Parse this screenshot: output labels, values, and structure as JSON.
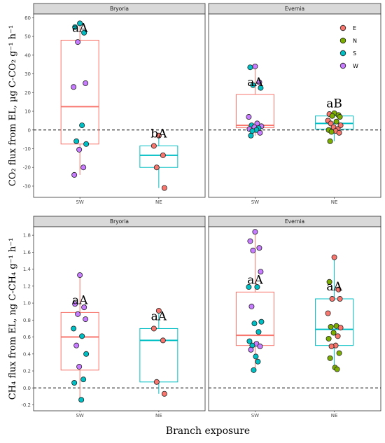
{
  "figure": {
    "x_axis_title": "Branch exposure",
    "colors": {
      "E": "#F8766D",
      "N": "#7CAE00",
      "S": "#00BFC4",
      "W": "#C77CFF",
      "SW_box": "#F8766D",
      "NE_box": "#00BFC4"
    },
    "legend": {
      "entries": [
        "E",
        "N",
        "S",
        "W"
      ],
      "placement": "top-right inside Evernia CO2 panel"
    }
  },
  "chart_data": [
    {
      "type": "box",
      "ylabel": "CO₂ flux from EL, µg C-CO₂ g⁻¹ h⁻¹",
      "ylim": [
        -36,
        62
      ],
      "yticks": [
        -30,
        -20,
        -10,
        0,
        10,
        20,
        30,
        40,
        50,
        60
      ],
      "reference_line": 0,
      "panels": [
        {
          "strip": "Bryoria",
          "groups": [
            {
              "category": "SW",
              "box": {
                "q1": -7.5,
                "median": 12.5,
                "q3": 48,
                "lower": -24,
                "upper": 57
              },
              "annotation": "aA",
              "points": [
                {
                  "y": 57,
                  "c": "S"
                },
                {
                  "y": 55,
                  "c": "S"
                },
                {
                  "y": 52,
                  "c": "S"
                },
                {
                  "y": 47,
                  "c": "W"
                },
                {
                  "y": 25,
                  "c": "W"
                },
                {
                  "y": 23,
                  "c": "W"
                },
                {
                  "y": 2.5,
                  "c": "S"
                },
                {
                  "y": -6,
                  "c": "S"
                },
                {
                  "y": -7.5,
                  "c": "S"
                },
                {
                  "y": -10.5,
                  "c": "W"
                },
                {
                  "y": -20,
                  "c": "W"
                },
                {
                  "y": -24,
                  "c": "W"
                }
              ]
            },
            {
              "category": "NE",
              "box": {
                "q1": -20,
                "median": -13.5,
                "q3": -8.5,
                "lower": -31,
                "upper": -3
              },
              "annotation": "bA",
              "points": [
                {
                  "y": -3,
                  "c": "E"
                },
                {
                  "y": -8.5,
                  "c": "E"
                },
                {
                  "y": -13.5,
                  "c": "E"
                },
                {
                  "y": -20,
                  "c": "E"
                },
                {
                  "y": -31,
                  "c": "E"
                }
              ]
            }
          ]
        },
        {
          "strip": "Evernia",
          "groups": [
            {
              "category": "SW",
              "box": {
                "q1": 1.2,
                "median": 2.5,
                "q3": 19,
                "lower": -3,
                "upper": 34
              },
              "annotation": "aA",
              "points": [
                {
                  "y": 34,
                  "c": "W"
                },
                {
                  "y": 33.5,
                  "c": "S"
                },
                {
                  "y": 25.5,
                  "c": "W"
                },
                {
                  "y": 24,
                  "c": "S"
                },
                {
                  "y": 22.5,
                  "c": "S"
                },
                {
                  "y": 7,
                  "c": "W"
                },
                {
                  "y": 3.5,
                  "c": "W"
                },
                {
                  "y": 2.5,
                  "c": "S"
                },
                {
                  "y": 2,
                  "c": "W"
                },
                {
                  "y": 1.5,
                  "c": "W"
                },
                {
                  "y": 1,
                  "c": "S"
                },
                {
                  "y": 0.5,
                  "c": "W"
                },
                {
                  "y": 0,
                  "c": "S"
                },
                {
                  "y": -0.5,
                  "c": "S"
                },
                {
                  "y": -1.5,
                  "c": "W"
                },
                {
                  "y": -3,
                  "c": "S"
                }
              ]
            },
            {
              "category": "NE",
              "box": {
                "q1": 0.5,
                "median": 3.5,
                "q3": 7.5,
                "lower": -6,
                "upper": 9
              },
              "annotation": "aB",
              "points": [
                {
                  "y": 9,
                  "c": "N"
                },
                {
                  "y": 8.5,
                  "c": "E"
                },
                {
                  "y": 8,
                  "c": "N"
                },
                {
                  "y": 7.5,
                  "c": "N"
                },
                {
                  "y": 7,
                  "c": "N"
                },
                {
                  "y": 5,
                  "c": "E"
                },
                {
                  "y": 4.5,
                  "c": "N"
                },
                {
                  "y": 3.5,
                  "c": "E"
                },
                {
                  "y": 2.5,
                  "c": "E"
                },
                {
                  "y": 1.5,
                  "c": "E"
                },
                {
                  "y": 0.5,
                  "c": "E"
                },
                {
                  "y": 0,
                  "c": "N"
                },
                {
                  "y": -0.5,
                  "c": "E"
                },
                {
                  "y": -1,
                  "c": "N"
                },
                {
                  "y": -1.5,
                  "c": "E"
                },
                {
                  "y": -6,
                  "c": "N"
                }
              ]
            }
          ]
        }
      ]
    },
    {
      "type": "box",
      "ylabel": "CH₄ flux from EL, ng C-CH₄ g⁻¹ h⁻¹",
      "ylim": [
        -0.27,
        1.9
      ],
      "yticks": [
        -0.2,
        0.0,
        0.2,
        0.4,
        0.6,
        0.8,
        1.0,
        1.2,
        1.4,
        1.6,
        1.8
      ],
      "reference_line": 0,
      "panels": [
        {
          "strip": "Bryoria",
          "groups": [
            {
              "category": "SW",
              "box": {
                "q1": 0.21,
                "median": 0.6,
                "q3": 0.89,
                "lower": -0.14,
                "upper": 1.33
              },
              "annotation": "aA",
              "points": [
                {
                  "y": 1.33,
                  "c": "W"
                },
                {
                  "y": 0.99,
                  "c": "W"
                },
                {
                  "y": 0.95,
                  "c": "W"
                },
                {
                  "y": 0.87,
                  "c": "W"
                },
                {
                  "y": 0.81,
                  "c": "W"
                },
                {
                  "y": 0.7,
                  "c": "S"
                },
                {
                  "y": 0.61,
                  "c": "S"
                },
                {
                  "y": 0.5,
                  "c": "W"
                },
                {
                  "y": 0.4,
                  "c": "S"
                },
                {
                  "y": 0.25,
                  "c": "W"
                },
                {
                  "y": 0.1,
                  "c": "S"
                },
                {
                  "y": 0.06,
                  "c": "S"
                },
                {
                  "y": -0.14,
                  "c": "S"
                }
              ]
            },
            {
              "category": "NE",
              "box": {
                "q1": 0.07,
                "median": 0.56,
                "q3": 0.7,
                "lower": -0.07,
                "upper": 0.91
              },
              "annotation": "aA",
              "points": [
                {
                  "y": 0.91,
                  "c": "E"
                },
                {
                  "y": 0.7,
                  "c": "E"
                },
                {
                  "y": 0.56,
                  "c": "E"
                },
                {
                  "y": 0.07,
                  "c": "E"
                },
                {
                  "y": -0.07,
                  "c": "E"
                }
              ]
            }
          ]
        },
        {
          "strip": "Evernia",
          "groups": [
            {
              "category": "SW",
              "box": {
                "q1": 0.5,
                "median": 0.62,
                "q3": 1.13,
                "lower": 0.22,
                "upper": 1.85
              },
              "annotation": "aA",
              "points": [
                {
                  "y": 1.84,
                  "c": "W"
                },
                {
                  "y": 1.73,
                  "c": "W"
                },
                {
                  "y": 1.65,
                  "c": "W"
                },
                {
                  "y": 1.62,
                  "c": "W"
                },
                {
                  "y": 1.37,
                  "c": "W"
                },
                {
                  "y": 1.19,
                  "c": "S"
                },
                {
                  "y": 1.19,
                  "c": "S"
                },
                {
                  "y": 0.96,
                  "c": "W"
                },
                {
                  "y": 0.78,
                  "c": "S"
                },
                {
                  "y": 0.76,
                  "c": "S"
                },
                {
                  "y": 0.66,
                  "c": "S"
                },
                {
                  "y": 0.55,
                  "c": "S"
                },
                {
                  "y": 0.52,
                  "c": "W"
                },
                {
                  "y": 0.5,
                  "c": "S"
                },
                {
                  "y": 0.49,
                  "c": "W"
                },
                {
                  "y": 0.45,
                  "c": "W"
                },
                {
                  "y": 0.37,
                  "c": "S"
                },
                {
                  "y": 0.31,
                  "c": "S"
                },
                {
                  "y": 0.21,
                  "c": "S"
                }
              ]
            },
            {
              "category": "NE",
              "box": {
                "q1": 0.5,
                "median": 0.69,
                "q3": 1.05,
                "lower": 0.22,
                "upper": 1.54
              },
              "annotation": "aA",
              "points": [
                {
                  "y": 1.54,
                  "c": "E"
                },
                {
                  "y": 1.25,
                  "c": "N"
                },
                {
                  "y": 1.16,
                  "c": "E"
                },
                {
                  "y": 1.05,
                  "c": "E"
                },
                {
                  "y": 1.05,
                  "c": "E"
                },
                {
                  "y": 0.88,
                  "c": "E"
                },
                {
                  "y": 0.73,
                  "c": "N"
                },
                {
                  "y": 0.72,
                  "c": "N"
                },
                {
                  "y": 0.71,
                  "c": "E"
                },
                {
                  "y": 0.65,
                  "c": "N"
                },
                {
                  "y": 0.61,
                  "c": "E"
                },
                {
                  "y": 0.58,
                  "c": "N"
                },
                {
                  "y": 0.5,
                  "c": "E"
                },
                {
                  "y": 0.49,
                  "c": "E"
                },
                {
                  "y": 0.41,
                  "c": "N"
                },
                {
                  "y": 0.35,
                  "c": "N"
                },
                {
                  "y": 0.24,
                  "c": "N"
                },
                {
                  "y": 0.22,
                  "c": "N"
                }
              ]
            }
          ]
        }
      ]
    }
  ]
}
